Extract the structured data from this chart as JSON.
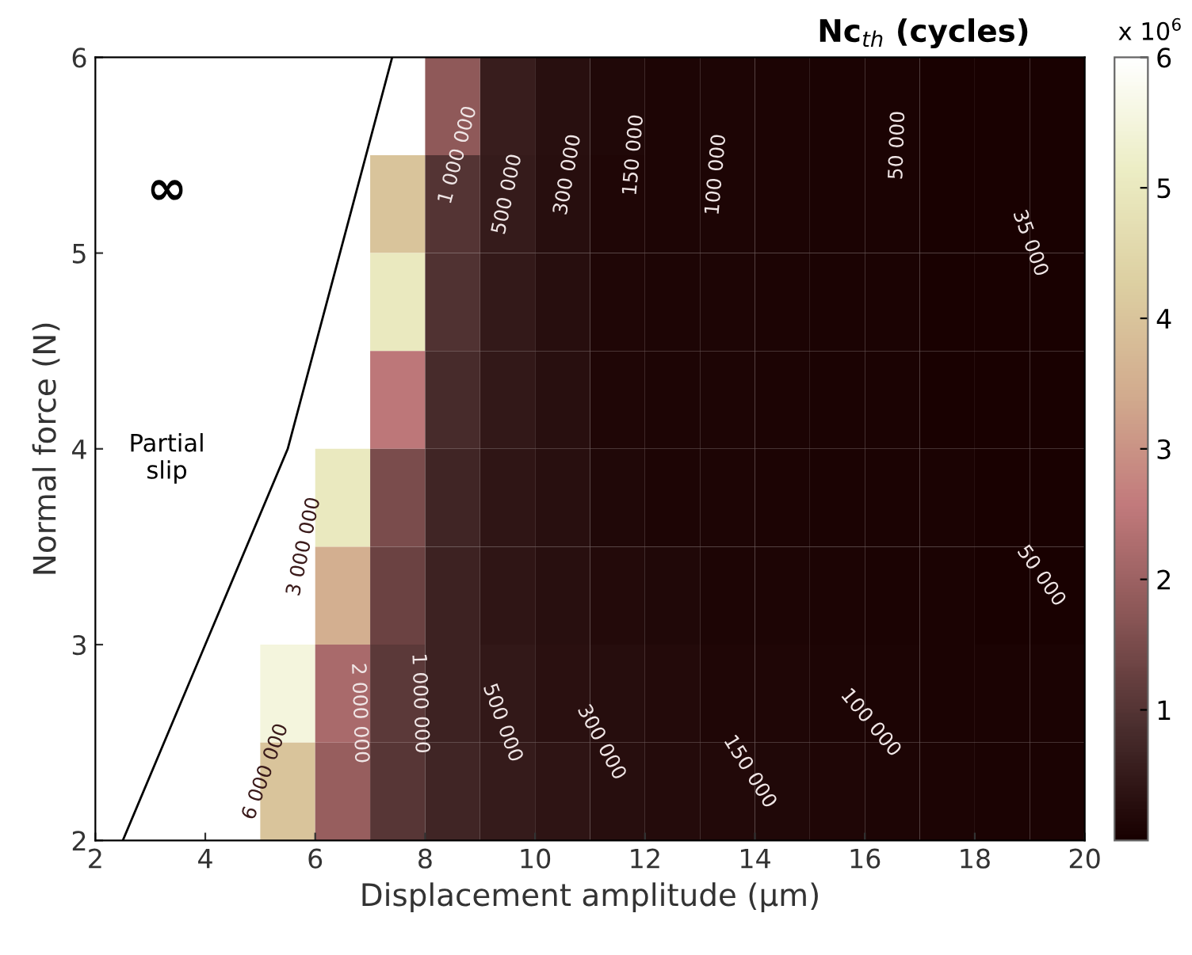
{
  "chart_data": {
    "type": "heatmap",
    "xlabel": "Displacement amplitude (µm)",
    "ylabel": "Normal force (N)",
    "clabel": "Nc$_{th}$ (cycles)",
    "x": [
      2.5,
      3.5,
      4.5,
      5.5,
      6.5,
      7.5,
      8.5,
      9.5,
      10.5,
      11.5,
      12.5,
      13.5,
      14.5,
      15.5,
      16.5,
      17.5,
      18.5,
      19.5
    ],
    "y": [
      5.75,
      5.25,
      4.75,
      4.25,
      3.75,
      3.25,
      2.75,
      2.25
    ],
    "xlim": [
      2,
      20
    ],
    "xticks": [
      2,
      4,
      6,
      8,
      10,
      12,
      14,
      16,
      18,
      20
    ],
    "ylim": [
      2,
      6
    ],
    "yticks": [
      2,
      3,
      4,
      5,
      6
    ],
    "clim": [
      0,
      6
    ],
    "cticks": [
      1,
      2,
      3,
      4,
      5,
      6
    ],
    "colors": [
      "#180000",
      "#4a2e2e",
      "#8a5656",
      "#c27a7c",
      "#d2ac8e",
      "#ddd0a2",
      "#ecedc4",
      "#ffffff"
    ],
    "cells": [
      [
        null,
        null,
        null,
        null,
        null,
        null,
        1.8,
        0.55,
        0.29,
        0.145,
        0.11,
        0.095,
        0.08,
        0.065,
        0.051,
        0.043,
        0.035,
        0.03
      ],
      [
        null,
        null,
        null,
        null,
        null,
        4.0,
        1.0,
        0.5,
        0.28,
        0.14,
        0.11,
        0.095,
        0.08,
        0.066,
        0.053,
        0.044,
        0.036,
        0.031
      ],
      [
        null,
        null,
        null,
        null,
        null,
        5.0,
        0.95,
        0.48,
        0.27,
        0.14,
        0.11,
        0.097,
        0.082,
        0.068,
        0.055,
        0.045,
        0.038,
        0.033
      ],
      [
        null,
        null,
        null,
        null,
        null,
        2.5,
        0.8,
        0.45,
        0.29,
        0.14,
        0.11,
        0.098,
        0.083,
        0.069,
        0.056,
        0.046,
        0.039,
        0.034
      ],
      [
        null,
        null,
        null,
        null,
        5.0,
        1.5,
        0.7,
        0.42,
        0.29,
        0.145,
        0.11,
        0.099,
        0.085,
        0.07,
        0.057,
        0.048,
        0.04,
        0.035
      ],
      [
        null,
        null,
        null,
        null,
        3.5,
        1.3,
        0.65,
        0.4,
        0.3,
        0.2,
        0.15,
        0.11,
        0.095,
        0.08,
        0.06,
        0.05,
        0.045,
        0.04
      ],
      [
        null,
        null,
        null,
        5.5,
        2.2,
        1.1,
        0.65,
        0.45,
        0.32,
        0.25,
        0.19,
        0.14,
        0.12,
        0.1,
        0.08,
        0.065,
        0.055,
        0.048
      ],
      [
        null,
        null,
        null,
        4.0,
        1.9,
        1.05,
        0.7,
        0.5,
        0.38,
        0.28,
        0.22,
        0.18,
        0.15,
        0.12,
        0.1,
        0.08,
        0.065,
        0.055
      ]
    ],
    "series": [
      {
        "type": "line",
        "color": "#000000",
        "x": [
          2.5,
          5.5,
          7.4
        ],
        "values": [
          2,
          4,
          6
        ]
      }
    ],
    "annotations": [
      "∞",
      "Partial\nslip",
      "x 10$^{6}$",
      "1 000 000",
      "500 000",
      "300 000",
      "150 000",
      "100 000",
      "50 000",
      "35 000",
      "3 000 000",
      "6 000 000",
      "2 000 000",
      "1 000 000",
      "500 000",
      "300 000",
      "150 000",
      "100 000",
      "50 000"
    ]
  }
}
